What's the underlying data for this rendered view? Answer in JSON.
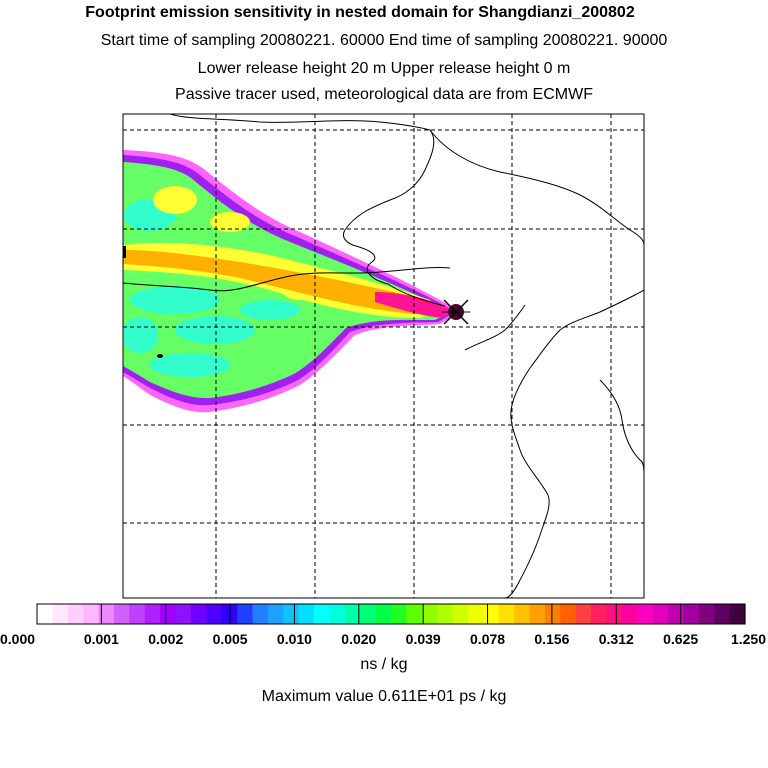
{
  "header": {
    "title": "Footprint emission sensitivity in nested domain for Shangdianzi_200802",
    "sampling": "Start time of sampling 20080221. 60000     End time of sampling 20080221. 90000",
    "release": "Lower release height   20 m          Upper release height    0 m",
    "tracer": "Passive tracer used, meteorological data are from ECMWF"
  },
  "map": {
    "receptor_marker": "star-icon",
    "plume_colors": {
      "outer": "#ff66ff",
      "purple": "#a020f0",
      "green": "#66ff66",
      "cyan": "#33ffcc",
      "yellow": "#ffff33",
      "orange": "#ffb000",
      "magenta": "#ff1493",
      "dark": "#6a0040"
    }
  },
  "legend": {
    "tick_labels": [
      "0.000",
      "0.001",
      "0.002",
      "0.005",
      "0.010",
      "0.020",
      "0.039",
      "0.078",
      "0.156",
      "0.312",
      "0.625",
      "1.250"
    ],
    "colors": [
      "#ffffff",
      "#ffe8ff",
      "#ffd0ff",
      "#ffb8ff",
      "#ee88ff",
      "#d060ff",
      "#c040ff",
      "#b020ff",
      "#a000ff",
      "#9010ff",
      "#7000ff",
      "#5000ff",
      "#3000ff",
      "#2040ff",
      "#2080ff",
      "#20a0ff",
      "#10c0ff",
      "#00e0ff",
      "#00ffff",
      "#00ffdd",
      "#00ffaa",
      "#00ff77",
      "#00ff44",
      "#20ff20",
      "#60ff00",
      "#90ff00",
      "#b0ff00",
      "#d0ff00",
      "#f0ff00",
      "#ffff00",
      "#ffe000",
      "#ffc000",
      "#ffa000",
      "#ff8000",
      "#ff6000",
      "#ff4040",
      "#ff2060",
      "#ff1080",
      "#ff00a0",
      "#ff00c0",
      "#e000c0",
      "#c000b0",
      "#a000a0",
      "#800080",
      "#600060",
      "#400040"
    ],
    "unit": "ns / kg",
    "max_value": "Maximum value  0.611E+01 ps / kg"
  }
}
